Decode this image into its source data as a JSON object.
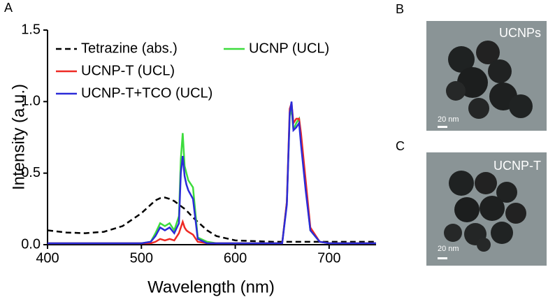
{
  "chart_data": {
    "type": "line",
    "x": [
      400,
      420,
      440,
      460,
      480,
      500,
      510,
      515,
      520,
      525,
      530,
      535,
      540,
      542,
      544,
      546,
      548,
      550,
      555,
      560,
      570,
      580,
      600,
      620,
      640,
      650,
      655,
      658,
      660,
      662,
      665,
      668,
      670,
      675,
      680,
      690,
      700,
      720,
      750
    ],
    "series": [
      {
        "name": "Tetrazine (abs.)",
        "color": "#000000",
        "dashed": true,
        "values": [
          0.1,
          0.085,
          0.08,
          0.09,
          0.13,
          0.22,
          0.28,
          0.31,
          0.325,
          0.33,
          0.32,
          0.305,
          0.28,
          0.27,
          0.26,
          0.25,
          0.24,
          0.225,
          0.19,
          0.16,
          0.1,
          0.06,
          0.03,
          0.025,
          0.02,
          0.02,
          0.02,
          0.02,
          0.02,
          0.02,
          0.02,
          0.02,
          0.02,
          0.02,
          0.02,
          0.02,
          0.02,
          0.02,
          0.02
        ]
      },
      {
        "name": "UCNP (UCL)",
        "color": "#3ddc3d",
        "values": [
          0.01,
          0.01,
          0.01,
          0.01,
          0.01,
          0.01,
          0.02,
          0.08,
          0.15,
          0.13,
          0.15,
          0.1,
          0.2,
          0.6,
          0.78,
          0.55,
          0.5,
          0.45,
          0.4,
          0.05,
          0.02,
          0.01,
          0.01,
          0.01,
          0.01,
          0.01,
          0.3,
          0.9,
          0.95,
          0.8,
          0.85,
          0.88,
          0.75,
          0.4,
          0.1,
          0.02,
          0.01,
          0.01,
          0.01
        ]
      },
      {
        "name": "UCNP-T (UCL)",
        "color": "#ee2a24",
        "values": [
          0.01,
          0.01,
          0.01,
          0.01,
          0.01,
          0.01,
          0.01,
          0.02,
          0.04,
          0.03,
          0.04,
          0.03,
          0.08,
          0.12,
          0.16,
          0.12,
          0.1,
          0.09,
          0.07,
          0.02,
          0.01,
          0.01,
          0.01,
          0.01,
          0.01,
          0.01,
          0.3,
          0.95,
          0.99,
          0.85,
          0.88,
          0.88,
          0.78,
          0.45,
          0.12,
          0.02,
          0.01,
          0.01,
          0.01
        ]
      },
      {
        "name": "UCNP-T+TCO (UCL)",
        "color": "#2b2bd8",
        "values": [
          0.01,
          0.01,
          0.01,
          0.01,
          0.01,
          0.01,
          0.02,
          0.06,
          0.12,
          0.1,
          0.12,
          0.08,
          0.15,
          0.5,
          0.62,
          0.48,
          0.42,
          0.38,
          0.32,
          0.04,
          0.01,
          0.01,
          0.01,
          0.01,
          0.01,
          0.01,
          0.28,
          0.92,
          1.0,
          0.8,
          0.82,
          0.85,
          0.7,
          0.38,
          0.1,
          0.02,
          0.01,
          0.01,
          0.01
        ]
      }
    ],
    "xlabel": "Wavelength (nm)",
    "ylabel": "Intensity (a.u.)",
    "xlim": [
      400,
      750
    ],
    "ylim": [
      0,
      1.5
    ],
    "xticks": [
      400,
      500,
      600,
      700
    ],
    "yticks": [
      {
        "value": 0,
        "label": "0.0"
      },
      {
        "value": 0.5,
        "label": "0.5"
      },
      {
        "value": 1,
        "label": "1.0"
      },
      {
        "value": 1.5,
        "label": "1.5"
      }
    ]
  },
  "panels": {
    "a": "A",
    "b": "B",
    "c": "C"
  },
  "images": [
    {
      "label": "UCNPs",
      "scale": "20 nm"
    },
    {
      "label": "UCNP-T",
      "scale": "20 nm"
    }
  ]
}
